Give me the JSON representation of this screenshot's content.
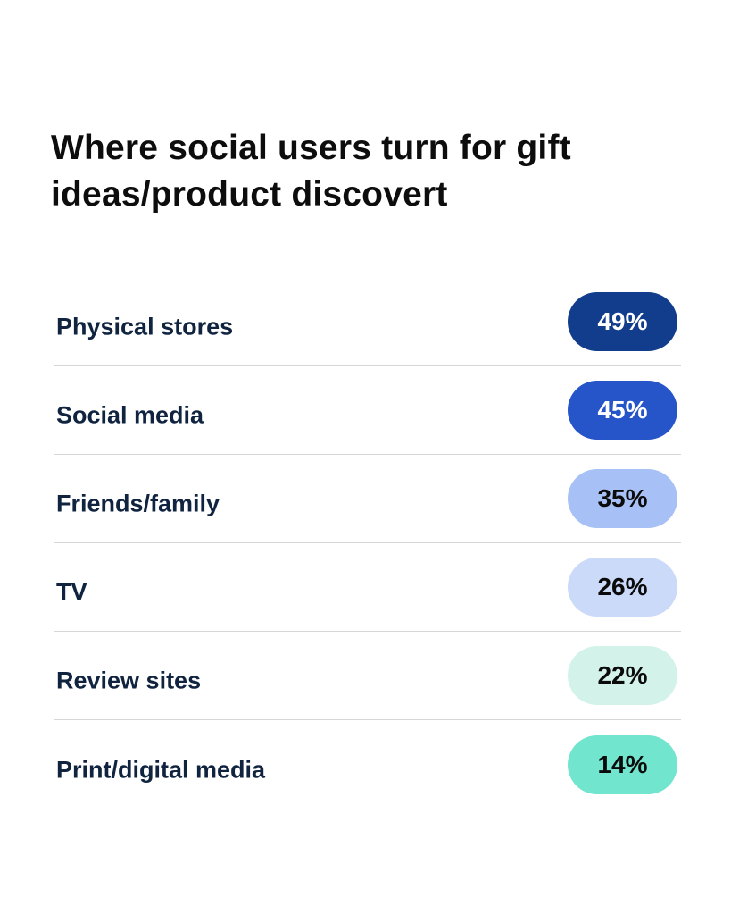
{
  "chart_data": {
    "type": "table",
    "title": "Where social users turn for gift ideas/product discovert",
    "categories": [
      "Physical stores",
      "Social media",
      "Friends/family",
      "TV",
      "Review sites",
      "Print/digital media"
    ],
    "values": [
      49,
      45,
      35,
      26,
      22,
      14
    ],
    "value_labels": [
      "49%",
      "45%",
      "35%",
      "26%",
      "22%",
      "14%"
    ],
    "unit": "%",
    "pill_colors": [
      "#123d8c",
      "#2655c9",
      "#a7c1f6",
      "#cbdaf9",
      "#d3f3ea",
      "#72e5cf"
    ],
    "pill_text_colors": [
      "#ffffff",
      "#ffffff",
      "#0b0b0b",
      "#0b0b0b",
      "#0b0b0b",
      "#0b0b0b"
    ]
  }
}
